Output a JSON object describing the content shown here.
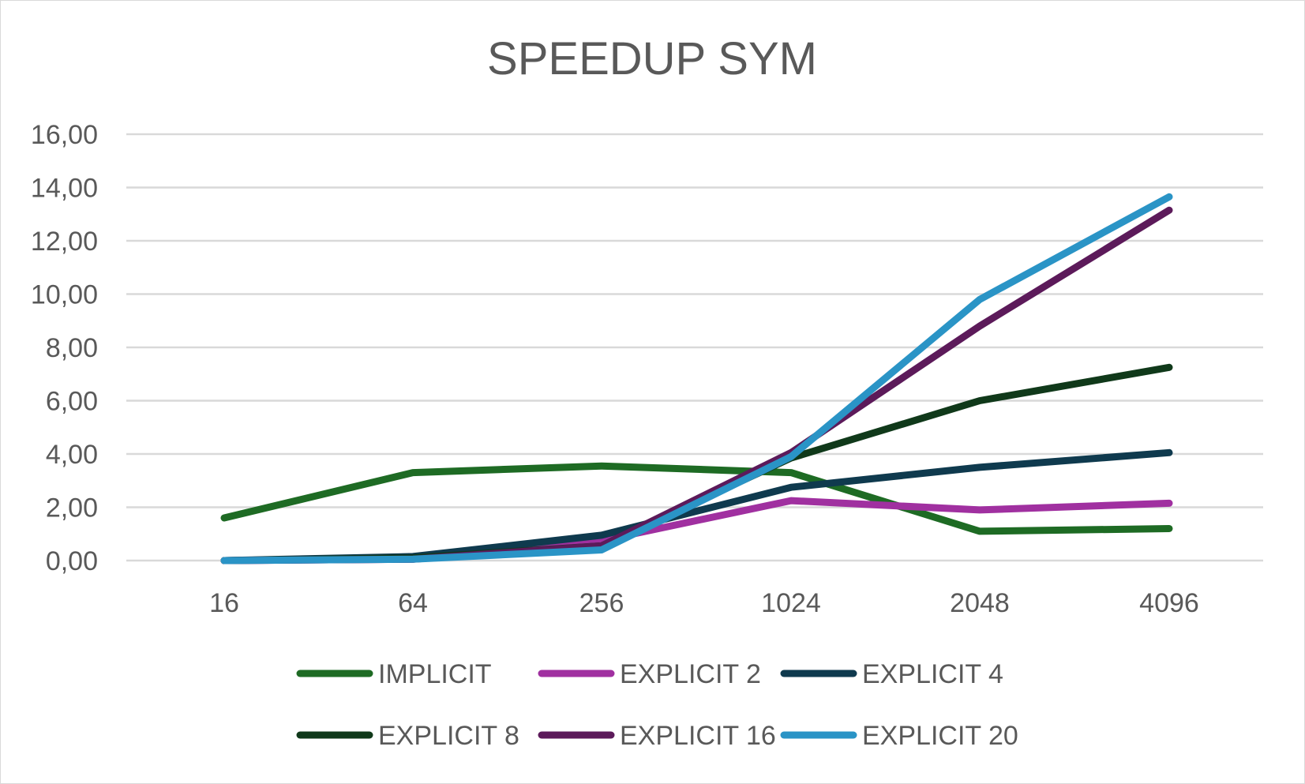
{
  "chart_data": {
    "type": "line",
    "title": "SPEEDUP SYM",
    "xlabel": "",
    "ylabel": "",
    "categories": [
      "16",
      "64",
      "256",
      "1024",
      "2048",
      "4096"
    ],
    "ylim": [
      0,
      16
    ],
    "yticks": [
      0,
      2,
      4,
      6,
      8,
      10,
      12,
      14,
      16
    ],
    "ytick_labels": [
      "0,00",
      "2,00",
      "4,00",
      "6,00",
      "8,00",
      "10,00",
      "12,00",
      "14,00",
      "16,00"
    ],
    "grid": true,
    "legend_position": "bottom",
    "series": [
      {
        "name": "IMPLICIT",
        "color": "#1e6b24",
        "values": [
          1.6,
          3.3,
          3.55,
          3.3,
          1.1,
          1.2
        ]
      },
      {
        "name": "EXPLICIT 2",
        "color": "#a030a0",
        "values": [
          0.0,
          0.05,
          0.75,
          2.25,
          1.9,
          2.15
        ]
      },
      {
        "name": "EXPLICIT 4",
        "color": "#0f3a4e",
        "values": [
          0.0,
          0.15,
          0.95,
          2.75,
          3.5,
          4.05
        ]
      },
      {
        "name": "EXPLICIT 8",
        "color": "#10391a",
        "values": [
          0.0,
          0.1,
          0.55,
          3.85,
          6.0,
          7.25
        ]
      },
      {
        "name": "EXPLICIT 16",
        "color": "#5c1a5a",
        "values": [
          0.0,
          0.05,
          0.55,
          4.05,
          8.8,
          13.15
        ]
      },
      {
        "name": "EXPLICIT 20",
        "color": "#2a94c6",
        "values": [
          0.0,
          0.05,
          0.4,
          3.9,
          9.8,
          13.65
        ]
      }
    ]
  }
}
